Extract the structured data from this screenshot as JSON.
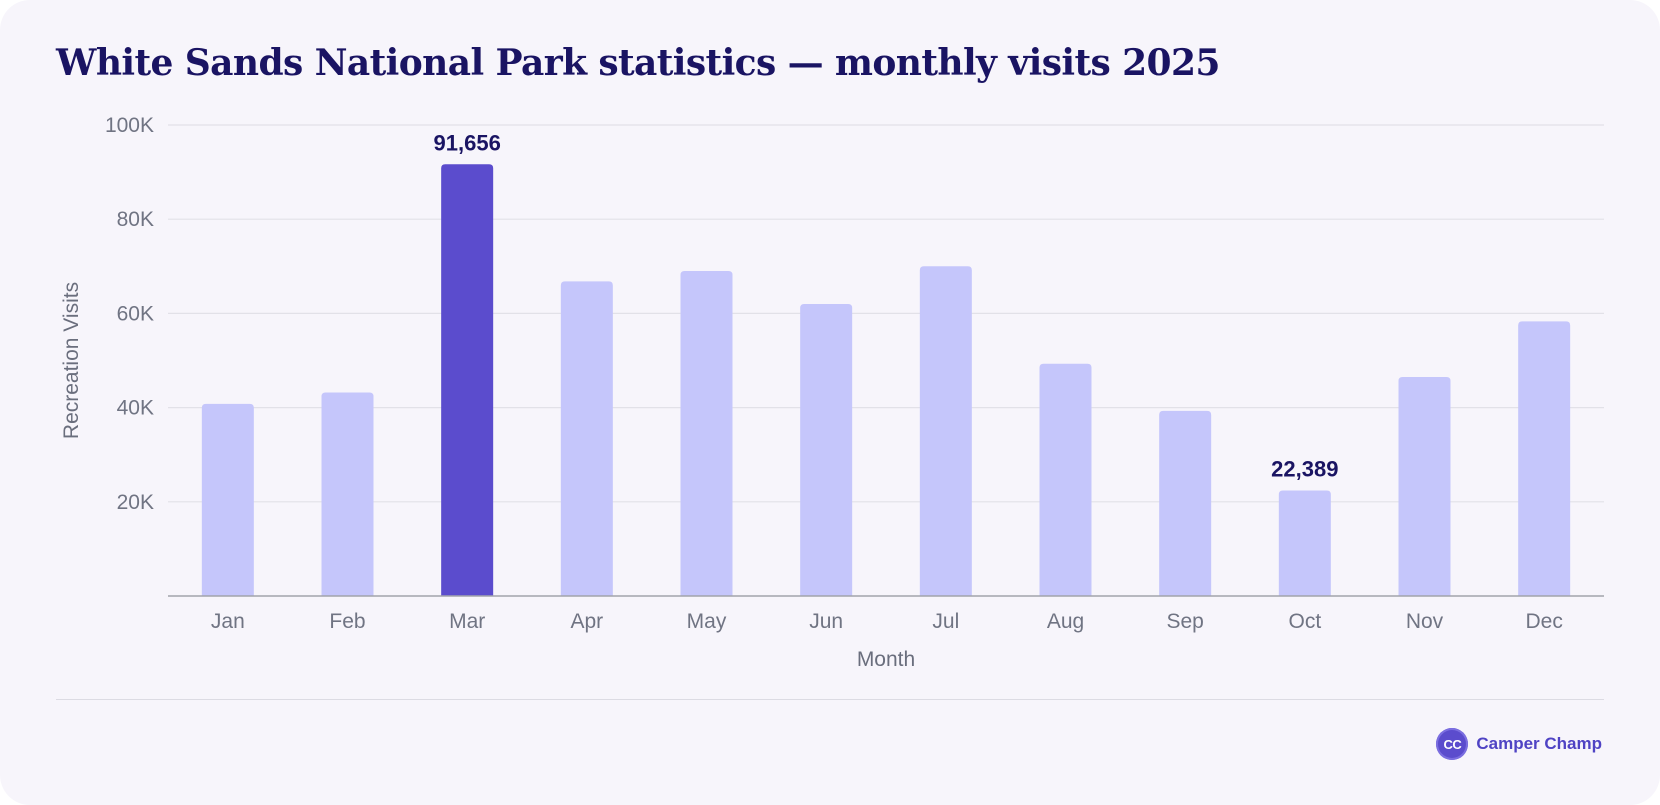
{
  "chart_data": {
    "type": "bar",
    "title": "White Sands National Park statistics — monthly visits 2025",
    "xlabel": "Month",
    "ylabel": "Recreation Visits",
    "ylim": [
      0,
      100000
    ],
    "yticks": [
      {
        "value": 20000,
        "label": "20K"
      },
      {
        "value": 40000,
        "label": "40K"
      },
      {
        "value": 60000,
        "label": "60K"
      },
      {
        "value": 80000,
        "label": "80K"
      },
      {
        "value": 100000,
        "label": "100K"
      }
    ],
    "grid": true,
    "legend": "none",
    "categories": [
      "Jan",
      "Feb",
      "Mar",
      "Apr",
      "May",
      "Jun",
      "Jul",
      "Aug",
      "Sep",
      "Oct",
      "Nov",
      "Dec"
    ],
    "values": [
      40800,
      43200,
      91656,
      66800,
      69000,
      62000,
      70000,
      49300,
      39300,
      22389,
      46500,
      58300
    ],
    "highlight_index": 2,
    "data_labels": [
      {
        "index": 2,
        "text": "91,656"
      },
      {
        "index": 9,
        "text": "22,389"
      }
    ],
    "colors": {
      "bar": "#c5c6fb",
      "highlight": "#5b4ccd",
      "grid": "#e2e1e8",
      "axis": "#a2a3ab",
      "title": "#1a1463"
    }
  },
  "brand": {
    "logo_text": "CC",
    "name": "Camper Champ"
  }
}
